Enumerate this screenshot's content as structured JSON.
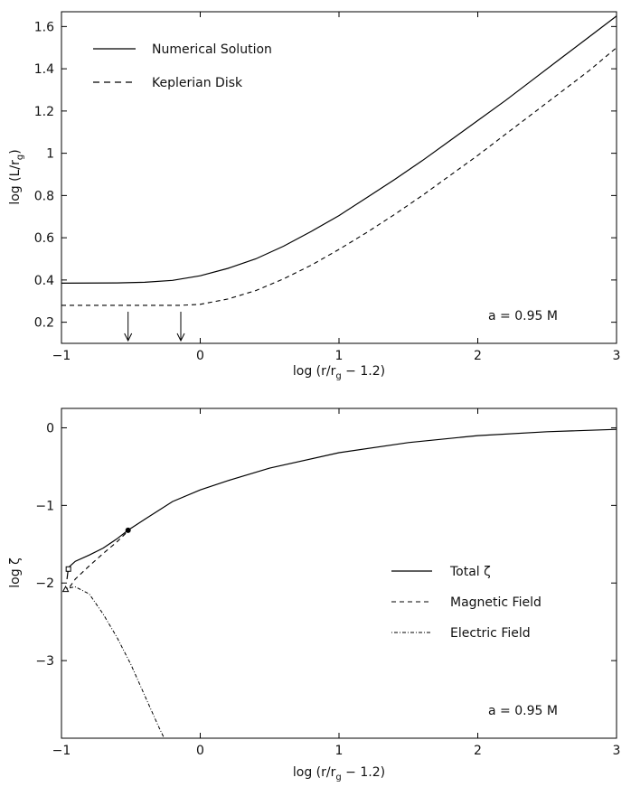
{
  "chart_data": [
    {
      "type": "line",
      "xlabel": "log (r/r",
      "xlabel_sub": "g",
      "xlabel_tail": " − 1.2)",
      "ylabel": "log (L/r",
      "ylabel_sub": "g",
      "ylabel_tail": ")",
      "xlim": [
        -1,
        3
      ],
      "ylim": [
        0.1,
        1.67
      ],
      "xticks": [
        "-1",
        "0",
        "1",
        "2",
        "3"
      ],
      "xtick_values": [
        -1,
        0,
        1,
        2,
        3
      ],
      "yticks": [
        "0.2",
        "0.4",
        "0.6",
        "0.8",
        "1",
        "1.2",
        "1.4",
        "1.6"
      ],
      "ytick_values": [
        0.2,
        0.4,
        0.6,
        0.8,
        1.0,
        1.2,
        1.4,
        1.6
      ],
      "annotation": "a = 0.95 M",
      "legend_position": "top-left",
      "series": [
        {
          "name": "Numerical Solution",
          "style": "solid",
          "points": [
            [
              -1.0,
              0.385
            ],
            [
              -0.6,
              0.386
            ],
            [
              -0.4,
              0.389
            ],
            [
              -0.2,
              0.398
            ],
            [
              0.0,
              0.42
            ],
            [
              0.2,
              0.455
            ],
            [
              0.4,
              0.5
            ],
            [
              0.6,
              0.56
            ],
            [
              0.8,
              0.63
            ],
            [
              1.0,
              0.705
            ],
            [
              1.2,
              0.79
            ],
            [
              1.4,
              0.875
            ],
            [
              1.6,
              0.965
            ],
            [
              1.8,
              1.06
            ],
            [
              2.0,
              1.155
            ],
            [
              2.2,
              1.25
            ],
            [
              2.4,
              1.35
            ],
            [
              2.6,
              1.45
            ],
            [
              2.8,
              1.55
            ],
            [
              3.0,
              1.65
            ]
          ]
        },
        {
          "name": "Keplerian Disk",
          "style": "dashed",
          "points": [
            [
              -1.0,
              0.28
            ],
            [
              -0.4,
              0.28
            ],
            [
              -0.14,
              0.28
            ],
            [
              0.0,
              0.285
            ],
            [
              0.2,
              0.31
            ],
            [
              0.4,
              0.35
            ],
            [
              0.6,
              0.405
            ],
            [
              0.8,
              0.47
            ],
            [
              1.0,
              0.545
            ],
            [
              1.2,
              0.625
            ],
            [
              1.4,
              0.71
            ],
            [
              1.6,
              0.8
            ],
            [
              1.8,
              0.895
            ],
            [
              2.0,
              0.99
            ],
            [
              2.2,
              1.09
            ],
            [
              2.4,
              1.19
            ],
            [
              2.6,
              1.29
            ],
            [
              2.8,
              1.39
            ],
            [
              3.0,
              1.5
            ]
          ]
        }
      ],
      "arrows_at_x": [
        -0.52,
        -0.14
      ]
    },
    {
      "type": "line",
      "xlabel": "log (r/r",
      "xlabel_sub": "g",
      "xlabel_tail": " − 1.2)",
      "ylabel": "log ζ",
      "xlim": [
        -1,
        3
      ],
      "ylim": [
        -4,
        0.25
      ],
      "xticks": [
        "-1",
        "0",
        "1",
        "2",
        "3"
      ],
      "xtick_values": [
        -1,
        0,
        1,
        2,
        3
      ],
      "yticks": [
        "0",
        "-1",
        "-2",
        "-3"
      ],
      "ytick_values": [
        0,
        -1,
        -2,
        -3
      ],
      "annotation": "a = 0.95 M",
      "legend_position": "right",
      "series": [
        {
          "name": "Total ζ",
          "style": "solid",
          "points": [
            [
              -0.96,
              -1.95
            ],
            [
              -0.95,
              -1.8
            ],
            [
              -0.9,
              -1.72
            ],
            [
              -0.8,
              -1.64
            ],
            [
              -0.7,
              -1.55
            ],
            [
              -0.6,
              -1.43
            ],
            [
              -0.52,
              -1.32
            ],
            [
              -0.4,
              -1.18
            ],
            [
              -0.2,
              -0.95
            ],
            [
              0.0,
              -0.8
            ],
            [
              0.2,
              -0.68
            ],
            [
              0.5,
              -0.52
            ],
            [
              1.0,
              -0.32
            ],
            [
              1.5,
              -0.19
            ],
            [
              2.0,
              -0.1
            ],
            [
              2.5,
              -0.05
            ],
            [
              3.0,
              -0.02
            ]
          ]
        },
        {
          "name": "Magnetic Field",
          "style": "dashed",
          "points": [
            [
              -0.94,
              -2.05
            ],
            [
              -0.9,
              -1.95
            ],
            [
              -0.8,
              -1.78
            ],
            [
              -0.7,
              -1.62
            ],
            [
              -0.6,
              -1.47
            ],
            [
              -0.52,
              -1.33
            ]
          ]
        },
        {
          "name": "Electric Field",
          "style": "dotdash",
          "points": [
            [
              -0.96,
              -2.07
            ],
            [
              -0.9,
              -2.05
            ],
            [
              -0.8,
              -2.14
            ],
            [
              -0.7,
              -2.4
            ],
            [
              -0.6,
              -2.7
            ],
            [
              -0.5,
              -3.05
            ],
            [
              -0.4,
              -3.45
            ],
            [
              -0.3,
              -3.85
            ],
            [
              -0.26,
              -4.0
            ]
          ]
        }
      ],
      "markers": [
        {
          "x": -0.95,
          "y": -1.82,
          "symbol": "open-square"
        },
        {
          "x": -0.97,
          "y": -2.08,
          "symbol": "open-triangle"
        },
        {
          "x": -0.52,
          "y": -1.32,
          "symbol": "filled-circle"
        }
      ]
    }
  ]
}
